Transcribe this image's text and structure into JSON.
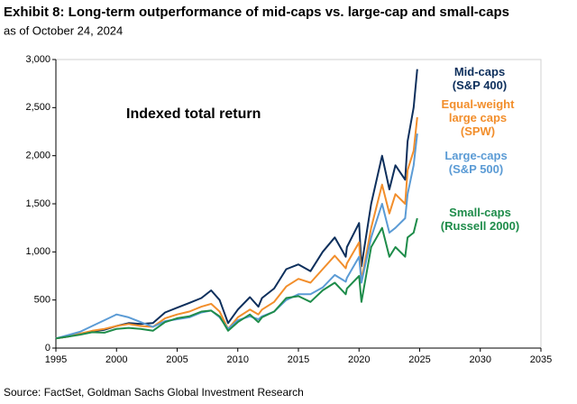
{
  "chart_data": {
    "type": "line",
    "title": "Exhibit 8: Long-term outperformance of mid-caps vs. large-cap and small-caps",
    "subtitle": "as of October 24, 2024",
    "annotation": "Indexed total return",
    "source": "Source: FactSet, Goldman Sachs Global Investment Research",
    "x": [
      1995,
      1996,
      1997,
      1998,
      1999,
      2000,
      2001,
      2002,
      2003,
      2004,
      2005,
      2006,
      2007,
      2007.8,
      2008.5,
      2009.2,
      2010,
      2011,
      2011.7,
      2012,
      2013,
      2014,
      2015,
      2016,
      2017,
      2018,
      2018.9,
      2019,
      2020,
      2020.2,
      2021,
      2021.9,
      2022.5,
      2023,
      2023.8,
      2024,
      2024.5,
      2024.8
    ],
    "series": [
      {
        "name": "Mid-caps (S&P 400)",
        "color": "#0d2f5c",
        "values": [
          100,
          120,
          145,
          175,
          190,
          230,
          260,
          250,
          260,
          370,
          420,
          470,
          520,
          600,
          500,
          260,
          400,
          530,
          430,
          520,
          620,
          820,
          870,
          800,
          1000,
          1150,
          950,
          1050,
          1300,
          850,
          1500,
          2000,
          1650,
          1900,
          1750,
          2150,
          2500,
          2900
        ]
      },
      {
        "name": "Equal-weight large caps (SPW)",
        "color": "#f28e2b",
        "values": [
          100,
          120,
          150,
          180,
          200,
          230,
          250,
          230,
          220,
          310,
          350,
          380,
          430,
          460,
          380,
          200,
          320,
          400,
          350,
          400,
          480,
          640,
          720,
          680,
          820,
          960,
          830,
          880,
          1100,
          700,
          1250,
          1700,
          1400,
          1600,
          1500,
          1850,
          2050,
          2400
        ]
      },
      {
        "name": "Large-caps (S&P 500)",
        "color": "#5b9bd5",
        "values": [
          100,
          135,
          170,
          230,
          290,
          350,
          320,
          270,
          220,
          280,
          300,
          320,
          370,
          390,
          320,
          200,
          290,
          330,
          300,
          330,
          380,
          500,
          560,
          560,
          630,
          760,
          690,
          730,
          950,
          680,
          1150,
          1500,
          1200,
          1250,
          1350,
          1600,
          1900,
          2230
        ]
      },
      {
        "name": "Small-caps (Russell 2000)",
        "color": "#1e8c4a",
        "values": [
          100,
          120,
          140,
          165,
          160,
          200,
          210,
          200,
          180,
          270,
          310,
          330,
          380,
          390,
          330,
          180,
          270,
          350,
          270,
          320,
          380,
          520,
          540,
          480,
          600,
          680,
          560,
          620,
          750,
          480,
          1050,
          1250,
          950,
          1050,
          950,
          1150,
          1200,
          1350
        ]
      }
    ],
    "xlim": [
      1995,
      2035
    ],
    "xticks": [
      1995,
      2000,
      2005,
      2010,
      2015,
      2020,
      2025,
      2030,
      2035
    ],
    "ylim": [
      0,
      3000
    ],
    "yticks": [
      0,
      500,
      {
        "value": 1000,
        "label": "1,000"
      },
      {
        "value": 1500,
        "label": "1,500"
      },
      {
        "value": 2000,
        "label": "2,000"
      },
      {
        "value": 2500,
        "label": "2,500"
      },
      {
        "value": 3000,
        "label": "3,000"
      }
    ]
  }
}
